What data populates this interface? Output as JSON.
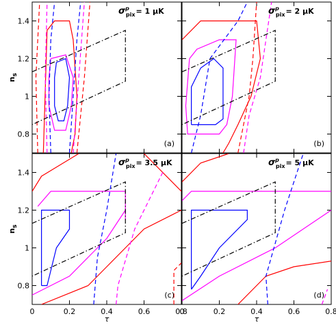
{
  "chart_data": [
    {
      "type": "contour",
      "label": {
        "symbol": "σ",
        "sup": "p",
        "sub": "pix",
        "value": "= 1 μK"
      },
      "panel": "(a)",
      "ylabel": {
        "main": "n",
        "sub": "s"
      },
      "xlim": [
        0,
        0.8
      ],
      "ylim": [
        0.7,
        1.5
      ],
      "xticks": [
        0,
        0.2,
        0.4,
        0.6,
        0.8
      ],
      "yticks": [
        0.8,
        1,
        1.2,
        1.4
      ],
      "series": [
        {
          "color": "#0000ff",
          "style": "solid",
          "x": [
            0.13,
            0.18,
            0.2,
            0.19,
            0.17,
            0.14,
            0.12,
            0.12,
            0.13
          ],
          "y": [
            1.18,
            1.2,
            1.1,
            0.95,
            0.87,
            0.87,
            0.95,
            1.1,
            1.18
          ]
        },
        {
          "color": "#ff00ff",
          "style": "solid",
          "x": [
            0.1,
            0.18,
            0.22,
            0.21,
            0.18,
            0.12,
            0.09,
            0.09,
            0.1
          ],
          "y": [
            1.2,
            1.22,
            1.1,
            0.95,
            0.82,
            0.82,
            0.95,
            1.1,
            1.2
          ]
        },
        {
          "color": "#ff0000",
          "style": "solid",
          "x": [
            0.06,
            0.08,
            0.12,
            0.2,
            0.22,
            0.24,
            0.23,
            0.21
          ],
          "y": [
            0.7,
            1.35,
            1.4,
            1.4,
            1.3,
            1.0,
            0.8,
            0.7
          ]
        },
        {
          "color": "#0000ff",
          "style": "dashed",
          "x": [
            0.1,
            0.09,
            0.1,
            0.12
          ],
          "y": [
            0.7,
            1.0,
            1.3,
            1.5
          ]
        },
        {
          "color": "#0000ff",
          "style": "dashed",
          "x": [
            0.2,
            0.22,
            0.24,
            0.26
          ],
          "y": [
            0.7,
            1.0,
            1.3,
            1.5
          ]
        },
        {
          "color": "#ff00ff",
          "style": "dashed",
          "x": [
            0.08,
            0.07,
            0.08
          ],
          "y": [
            0.7,
            1.1,
            1.5
          ]
        },
        {
          "color": "#ff00ff",
          "style": "dashed",
          "x": [
            0.22,
            0.25,
            0.28
          ],
          "y": [
            0.7,
            1.1,
            1.5
          ]
        },
        {
          "color": "#ff0000",
          "style": "dashed",
          "x": [
            0.03,
            0.02,
            0.04
          ],
          "y": [
            0.7,
            1.1,
            1.5
          ]
        },
        {
          "color": "#ff0000",
          "style": "dashed",
          "x": [
            0.24,
            0.28,
            0.31
          ],
          "y": [
            0.7,
            1.1,
            1.5
          ]
        },
        {
          "color": "#000000",
          "style": "dashdot",
          "x": [
            0,
            0.5,
            0.5,
            0,
            0
          ],
          "y": [
            1.13,
            1.35,
            1.08,
            0.85,
            0.85
          ]
        }
      ]
    },
    {
      "type": "contour",
      "label": {
        "symbol": "σ",
        "sup": "p",
        "sub": "pix",
        "value": "= 2 μK"
      },
      "panel": "(b)",
      "xlim": [
        0,
        0.8
      ],
      "ylim": [
        0.7,
        1.5
      ],
      "xticks": [
        0,
        0.2,
        0.4,
        0.6,
        0.8
      ],
      "yticks": [
        0.8,
        1,
        1.2,
        1.4
      ],
      "series": [
        {
          "color": "#0000ff",
          "style": "solid",
          "x": [
            0.05,
            0.05,
            0.1,
            0.17,
            0.22,
            0.22,
            0.18,
            0.05
          ],
          "y": [
            0.85,
            1.05,
            1.15,
            1.2,
            1.15,
            0.88,
            0.85,
            0.85
          ]
        },
        {
          "color": "#ff00ff",
          "style": "solid",
          "x": [
            0.04,
            0.08,
            0.2,
            0.29,
            0.27,
            0.24,
            0.2,
            0.03,
            0.02,
            0.04
          ],
          "y": [
            1.2,
            1.25,
            1.3,
            1.3,
            1.0,
            0.85,
            0.8,
            0.8,
            0.95,
            1.2
          ]
        },
        {
          "color": "#ff0000",
          "style": "solid",
          "x": [
            0,
            0.1,
            0.4,
            0.42,
            0.37,
            0.3,
            0.25,
            0.22
          ],
          "y": [
            1.3,
            1.4,
            1.4,
            1.2,
            1.0,
            0.85,
            0.75,
            0.7
          ]
        },
        {
          "color": "#0000ff",
          "style": "dashed",
          "x": [
            0.05,
            0.1,
            0.15,
            0.3,
            0.35
          ],
          "y": [
            0.7,
            0.9,
            1.2,
            1.4,
            1.5
          ]
        },
        {
          "color": "#ff00ff",
          "style": "dashed",
          "x": [
            0.33,
            0.36,
            0.42,
            0.48
          ],
          "y": [
            0.7,
            0.9,
            1.1,
            1.5
          ]
        },
        {
          "color": "#ff0000",
          "style": "dashed",
          "x": [
            0.3,
            0.33,
            0.36,
            0.38,
            0.4
          ],
          "y": [
            0.7,
            0.85,
            1.0,
            1.2,
            1.5
          ]
        },
        {
          "color": "#000000",
          "style": "dashdot",
          "x": [
            0,
            0.5,
            0.5,
            0,
            0
          ],
          "y": [
            1.13,
            1.35,
            1.08,
            0.85,
            0.85
          ]
        }
      ]
    },
    {
      "type": "contour",
      "label": {
        "symbol": "σ",
        "sup": "p",
        "sub": "pix",
        "value": "= 3.5 μK"
      },
      "panel": "(c)",
      "xlabel": "τ",
      "ylabel": {
        "main": "n",
        "sub": "s"
      },
      "xlim": [
        0,
        0.8
      ],
      "ylim": [
        0.7,
        1.5
      ],
      "xticks": [
        0,
        0.2,
        0.4,
        0.6,
        0.8
      ],
      "yticks": [
        0.8,
        1,
        1.2,
        1.4
      ],
      "series": [
        {
          "color": "#0000ff",
          "style": "solid",
          "x": [
            0.05,
            0.05,
            0.2,
            0.2,
            0.13,
            0.1,
            0.08,
            0.05
          ],
          "y": [
            0.8,
            1.2,
            1.2,
            1.1,
            1.0,
            0.88,
            0.8,
            0.8
          ]
        },
        {
          "color": "#ff00ff",
          "style": "solid",
          "x": [
            0.03,
            0.1,
            0.5,
            0.5
          ],
          "y": [
            1.22,
            1.3,
            1.3,
            1.15
          ]
        },
        {
          "color": "#ff00ff",
          "style": "solid",
          "x": [
            0,
            0.2,
            0.3,
            0.4,
            0.5
          ],
          "y": [
            0.75,
            0.85,
            0.95,
            1.05,
            1.2
          ]
        },
        {
          "color": "#ff0000",
          "style": "solid",
          "x": [
            0,
            0.05,
            0.2,
            0.25
          ],
          "y": [
            1.3,
            1.38,
            1.47,
            1.5
          ]
        },
        {
          "color": "#ff0000",
          "style": "solid",
          "x": [
            0.05,
            0.3,
            0.4,
            0.5,
            0.6,
            0.8
          ],
          "y": [
            0.7,
            0.8,
            0.9,
            1.0,
            1.1,
            1.2
          ]
        },
        {
          "color": "#ff0000",
          "style": "solid",
          "x": [
            0.6,
            0.8
          ],
          "y": [
            1.5,
            1.3
          ]
        },
        {
          "color": "#0000ff",
          "style": "dashed",
          "x": [
            0.33,
            0.35,
            0.4,
            0.45
          ],
          "y": [
            0.7,
            0.95,
            1.2,
            1.5
          ]
        },
        {
          "color": "#ff00ff",
          "style": "dashed",
          "x": [
            0.45,
            0.46,
            0.55,
            0.7
          ],
          "y": [
            0.7,
            0.8,
            1.1,
            1.4
          ]
        },
        {
          "color": "#ff0000",
          "style": "dashed",
          "x": [
            0.76,
            0.76,
            0.8
          ],
          "y": [
            0.7,
            0.88,
            0.92
          ]
        },
        {
          "color": "#000000",
          "style": "dashdot",
          "x": [
            0,
            0.5,
            0.5,
            0,
            0
          ],
          "y": [
            1.13,
            1.35,
            1.08,
            0.85,
            0.85
          ]
        }
      ]
    },
    {
      "type": "contour",
      "label": {
        "symbol": "σ",
        "sup": "p",
        "sub": "pix",
        "value": "= 5 μK"
      },
      "panel": "(d)",
      "xlabel": "τ",
      "xlim": [
        0,
        0.8
      ],
      "ylim": [
        0.7,
        1.5
      ],
      "xticks": [
        0,
        0.2,
        0.4,
        0.6,
        0.8
      ],
      "yticks": [
        0.8,
        1,
        1.2,
        1.4
      ],
      "series": [
        {
          "color": "#0000ff",
          "style": "solid",
          "x": [
            0.05,
            0.05,
            0.35,
            0.35,
            0.2,
            0.1,
            0.05
          ],
          "y": [
            0.78,
            1.2,
            1.2,
            1.15,
            1.0,
            0.85,
            0.78
          ]
        },
        {
          "color": "#ff00ff",
          "style": "solid",
          "x": [
            0,
            0.05,
            0.8
          ],
          "y": [
            1.25,
            1.3,
            1.3
          ]
        },
        {
          "color": "#ff00ff",
          "style": "solid",
          "x": [
            0,
            0.2,
            0.5,
            0.65,
            0.8
          ],
          "y": [
            0.72,
            0.85,
            1.0,
            1.1,
            1.2
          ]
        },
        {
          "color": "#ff0000",
          "style": "solid",
          "x": [
            0,
            0.1,
            0.25
          ],
          "y": [
            1.35,
            1.45,
            1.5
          ]
        },
        {
          "color": "#ff0000",
          "style": "solid",
          "x": [
            0.3,
            0.45,
            0.6,
            0.8
          ],
          "y": [
            0.7,
            0.85,
            0.9,
            0.93
          ]
        },
        {
          "color": "#0000ff",
          "style": "dashed",
          "x": [
            0.46,
            0.45,
            0.55,
            0.65
          ],
          "y": [
            0.7,
            0.85,
            1.2,
            1.5
          ]
        },
        {
          "color": "#ff00ff",
          "style": "dashed",
          "x": [
            0.75,
            0.78
          ],
          "y": [
            0.7,
            0.78
          ]
        },
        {
          "color": "#000000",
          "style": "dashdot",
          "x": [
            0,
            0.5,
            0.5,
            0,
            0
          ],
          "y": [
            1.13,
            1.35,
            1.08,
            0.85,
            0.85
          ]
        }
      ]
    }
  ]
}
